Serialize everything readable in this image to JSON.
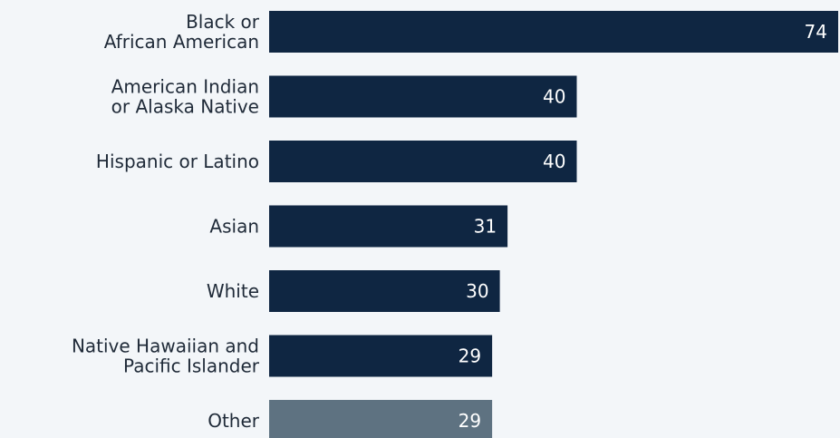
{
  "chart_data": {
    "type": "bar",
    "orientation": "horizontal",
    "categories": [
      [
        "Black or",
        "African American"
      ],
      [
        "American Indian",
        "or Alaska Native"
      ],
      [
        "Hispanic or Latino"
      ],
      [
        "Asian"
      ],
      [
        "White"
      ],
      [
        "Native Hawaiian and",
        "Pacific Islander"
      ],
      [
        "Other"
      ]
    ],
    "values": [
      74,
      40,
      40,
      31,
      30,
      29,
      29
    ],
    "value_labels": [
      "74",
      "40",
      "40",
      "31",
      "30",
      "29",
      "29"
    ],
    "xlim": [
      0,
      74
    ],
    "grid": false,
    "legend": "none",
    "colors": {
      "background": "#f3f6f9",
      "bar": "#0f2642",
      "bar_highlight": "#5e7281",
      "value_text": "#ffffff",
      "category_text": "#1f2a38"
    },
    "highlight_index": 6
  }
}
